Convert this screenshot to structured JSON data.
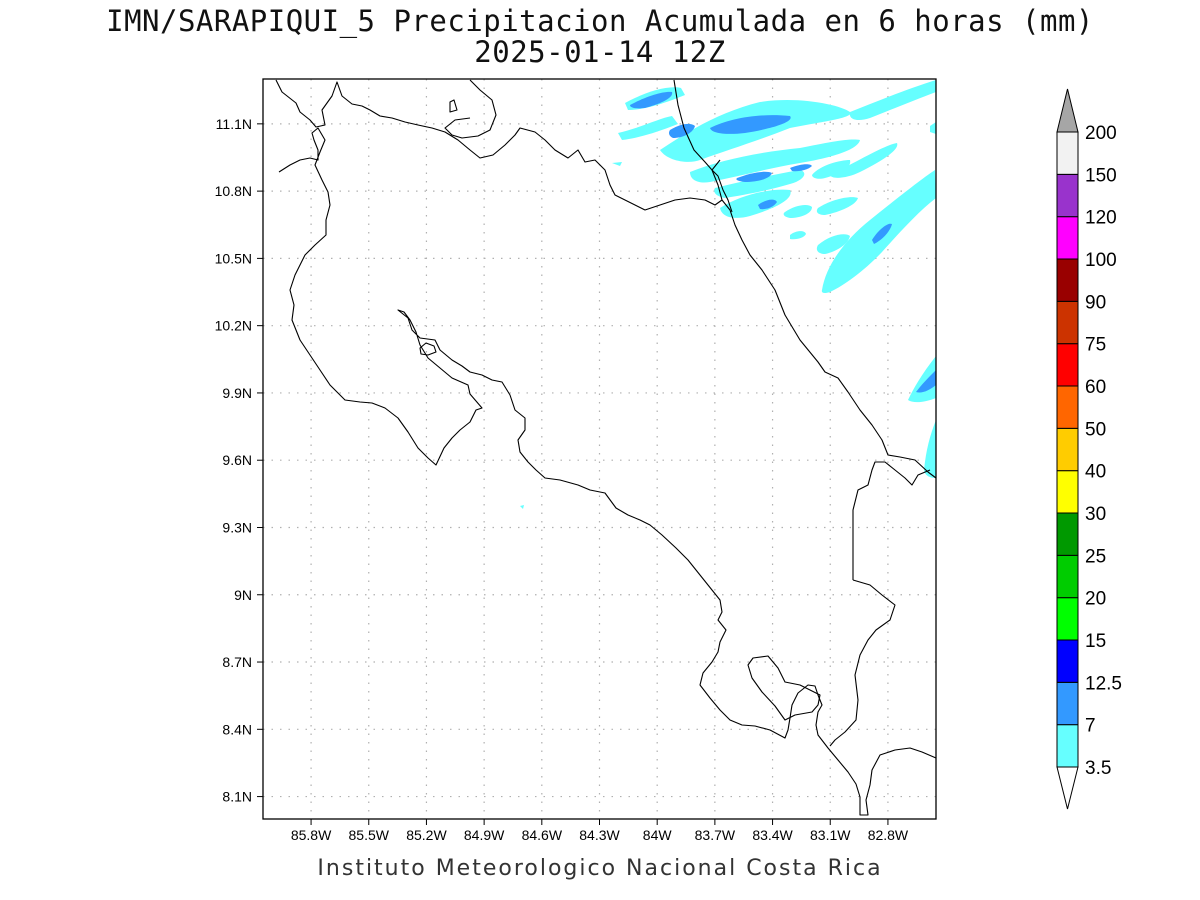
{
  "title": {
    "line1": "IMN/SARAPIQUI_5 Precipitacion Acumulada en 6 horas (mm)",
    "line2": "2025-01-14 12Z"
  },
  "footer": "Instituto Meteorologico Nacional Costa Rica",
  "map": {
    "lon_range": [
      -86.05,
      -82.55
    ],
    "lat_range": [
      8.0,
      11.3
    ],
    "lat_ticks": [
      {
        "value": 11.1,
        "label": "11.1N"
      },
      {
        "value": 10.8,
        "label": "10.8N"
      },
      {
        "value": 10.5,
        "label": "10.5N"
      },
      {
        "value": 10.2,
        "label": "10.2N"
      },
      {
        "value": 9.9,
        "label": "9.9N"
      },
      {
        "value": 9.6,
        "label": "9.6N"
      },
      {
        "value": 9.3,
        "label": "9.3N"
      },
      {
        "value": 9.0,
        "label": "9N"
      },
      {
        "value": 8.7,
        "label": "8.7N"
      },
      {
        "value": 8.4,
        "label": "8.4N"
      },
      {
        "value": 8.1,
        "label": "8.1N"
      }
    ],
    "lon_ticks": [
      {
        "value": -85.8,
        "label": "85.8W"
      },
      {
        "value": -85.5,
        "label": "85.5W"
      },
      {
        "value": -85.2,
        "label": "85.2W"
      },
      {
        "value": -84.9,
        "label": "84.9W"
      },
      {
        "value": -84.6,
        "label": "84.6W"
      },
      {
        "value": -84.3,
        "label": "84.3W"
      },
      {
        "value": -84.0,
        "label": "84W"
      },
      {
        "value": -83.7,
        "label": "83.7W"
      },
      {
        "value": -83.4,
        "label": "83.4W"
      },
      {
        "value": -83.1,
        "label": "83.1W"
      },
      {
        "value": -82.8,
        "label": "82.8W"
      }
    ],
    "grid": "dotted",
    "coast_color": "#000000"
  },
  "colorbar": {
    "levels": [
      {
        "label": "3.5",
        "color": "#66ffff"
      },
      {
        "label": "7",
        "color": "#3399ff"
      },
      {
        "label": "12.5",
        "color": "#0000ff"
      },
      {
        "label": "15",
        "color": "#00ff00"
      },
      {
        "label": "20",
        "color": "#00cc00"
      },
      {
        "label": "25",
        "color": "#009900"
      },
      {
        "label": "30",
        "color": "#ffff00"
      },
      {
        "label": "40",
        "color": "#ffcc00"
      },
      {
        "label": "50",
        "color": "#ff6600"
      },
      {
        "label": "60",
        "color": "#ff0000"
      },
      {
        "label": "75",
        "color": "#cc3300"
      },
      {
        "label": "90",
        "color": "#990000"
      },
      {
        "label": "100",
        "color": "#ff00ff"
      },
      {
        "label": "120",
        "color": "#9933cc"
      },
      {
        "label": "150",
        "color": "#f2f2f2"
      },
      {
        "label": "200",
        "color": "#a6a6a6"
      }
    ],
    "under_color": "#ffffff",
    "over_color": "#a6a6a6"
  }
}
